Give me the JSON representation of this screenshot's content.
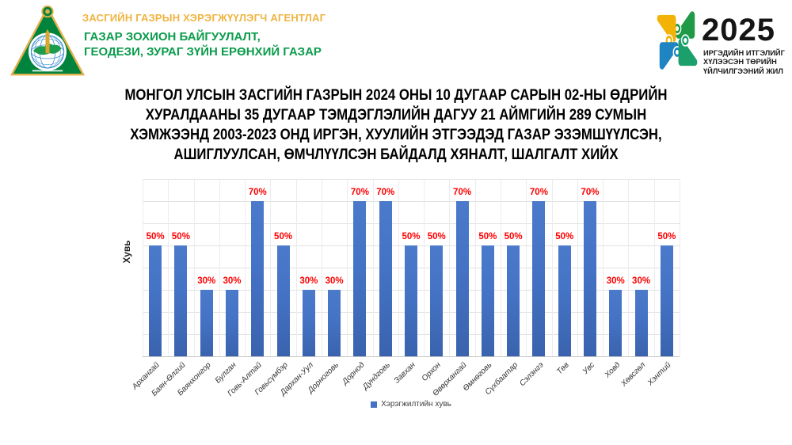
{
  "header": {
    "agency_type": "ЗАСГИЙН ГАЗРЫН ХЭРЭГЖҮҮЛЭГЧ АГЕНТЛАГ",
    "org_line1": "ГАЗАР ЗОХИОН БАЙГУУЛАЛТ,",
    "org_line2": "ГЕОДЕЗИ, ЗУРАГ ЗҮЙН ЕРӨНХИЙ ГАЗАР",
    "colors": {
      "agency_gold": "#EFB441",
      "org_green": "#0B9C4C"
    },
    "year_logo": {
      "year": "2025",
      "tagline": [
        "ИРГЭДИЙН ИТГЭЛИЙГ",
        "ХҮЛЭЭСЭН ТӨРИЙН",
        "ҮЙЛЧИЛГЭЭНИЙ ЖИЛ"
      ]
    }
  },
  "title": {
    "lines": [
      "МОНГОЛ УЛСЫН ЗАСГИЙН ГАЗРЫН 2024 ОНЫ 10 ДУГААР САРЫН 02-НЫ ӨДРИЙН",
      "ХУРАЛДААНЫ 35 ДУГААР ТЭМДЭГЛЭЛИЙН ДАГУУ 21 АЙМГИЙН 289 СУМЫН",
      "ХЭМЖЭЭНД 2003-2023 ОНД ИРГЭН, ХУУЛИЙН ЭТГЭЭДЭД ГАЗАР ЭЗЭМШҮҮЛСЭН,",
      "АШИГЛУУЛСАН, ӨМЧЛҮҮЛСЭН БАЙДАЛД ХЯНАЛТ, ШАЛГАЛТ ХИЙХ"
    ]
  },
  "chart_data": {
    "type": "bar",
    "categories": [
      "Архангай",
      "Баян-Өлгий",
      "Баянхонгор",
      "Булган",
      "Говь-Алтай",
      "Говьсүмбэр",
      "Дархан-Уул",
      "Дорноговь",
      "Дорнод",
      "Дундговь",
      "Завхан",
      "Орхон",
      "Өвөрхангай",
      "Өмнөговь",
      "Сүхбаатар",
      "Сэлэнгэ",
      "Төв",
      "Увс",
      "Ховд",
      "Хөвсгөл",
      "Хэнтий"
    ],
    "values": [
      50,
      50,
      30,
      30,
      70,
      50,
      30,
      30,
      70,
      70,
      50,
      50,
      70,
      50,
      50,
      70,
      50,
      70,
      30,
      30,
      50
    ],
    "value_suffix": "%",
    "ylabel": "Хувь",
    "xlabel": "",
    "ylim": [
      0,
      80
    ],
    "grid": true,
    "legend": {
      "position": "bottom",
      "entries": [
        "Хэрэгжилтийн хувь"
      ]
    },
    "colors": {
      "bar": "#4472C4",
      "bar_gradient_top": "#4C7ACB",
      "bar_gradient_bottom": "#3A63AE",
      "data_label": "#FE0000"
    }
  }
}
